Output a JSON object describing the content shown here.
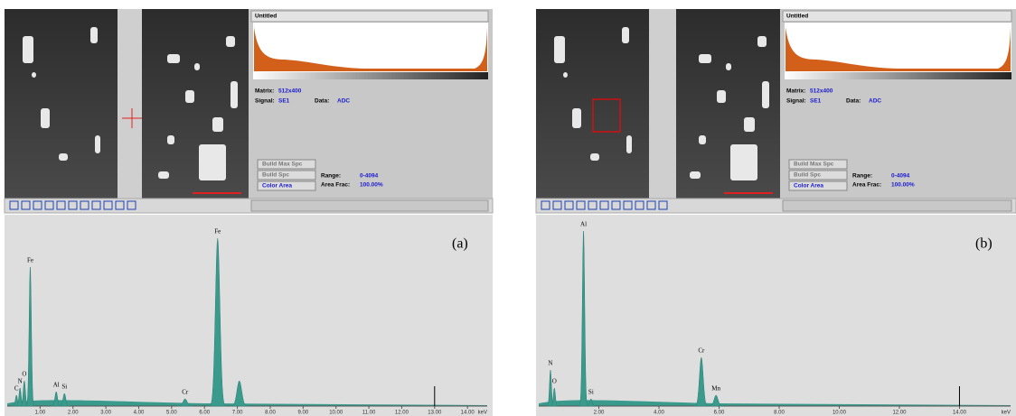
{
  "panels": [
    {
      "tag": "(a)",
      "window_title": "Untitled",
      "matrix_label": "Matrix:",
      "matrix_value": "512x400",
      "signal_label": "Signal:",
      "signal_value": "SE1",
      "data_label": "Data:",
      "data_value": "ADC",
      "buttons": [
        "Build Max Spc",
        "Build Spc",
        "Color Area"
      ],
      "range_label": "Range:",
      "range_value": "0-4094",
      "area_label": "Area Frac:",
      "area_value": "100.00%",
      "spectrum": {
        "xlim": [
          0,
          14.6
        ],
        "ylim": [
          0,
          100
        ],
        "x_unit": "keV",
        "marker": 13,
        "xticks": [
          {
            "value": 1,
            "label": "1.00"
          },
          {
            "value": 2,
            "label": "2.00"
          },
          {
            "value": 3,
            "label": "3.00"
          },
          {
            "value": 4,
            "label": "4.00"
          },
          {
            "value": 5,
            "label": "5.00"
          },
          {
            "value": 6,
            "label": "6.00"
          },
          {
            "value": 7,
            "label": "7.00"
          },
          {
            "value": 8,
            "label": "8.00"
          },
          {
            "value": 9,
            "label": "9.00"
          },
          {
            "value": 10,
            "label": "10.00"
          },
          {
            "value": 11,
            "label": "11.00"
          },
          {
            "value": 12,
            "label": "12.00"
          },
          {
            "value": 13,
            "label": "13.00"
          },
          {
            "value": 14,
            "label": "14.00"
          }
        ],
        "peaks": [
          {
            "label": "C",
            "energy": 0.28,
            "height": 6
          },
          {
            "label": "N",
            "energy": 0.39,
            "height": 10
          },
          {
            "label": "O",
            "energy": 0.52,
            "height": 14
          },
          {
            "label": "Fe",
            "energy": 0.7,
            "height": 77
          },
          {
            "label": "Al",
            "energy": 1.49,
            "height": 8
          },
          {
            "label": "Si",
            "energy": 1.74,
            "height": 7
          },
          {
            "label": "Cr",
            "energy": 5.41,
            "height": 4
          },
          {
            "label": "Fe",
            "energy": 6.4,
            "height": 93
          },
          {
            "label": null,
            "energy": 7.06,
            "height": 14
          }
        ]
      }
    },
    {
      "tag": "(b)",
      "window_title": "Untitled",
      "matrix_label": "Matrix:",
      "matrix_value": "512x400",
      "signal_label": "Signal:",
      "signal_value": "SE1",
      "data_label": "Data:",
      "data_value": "ADC",
      "buttons": [
        "Build Max Spc",
        "Build Spc",
        "Color Area"
      ],
      "range_label": "Range:",
      "range_value": "0-4094",
      "area_label": "Area Frac:",
      "area_value": "100.00%",
      "spectrum": {
        "xlim": [
          0,
          15.7
        ],
        "ylim": [
          0,
          100
        ],
        "x_unit": "keV",
        "marker": 14,
        "xticks": [
          {
            "value": 2,
            "label": "2.00"
          },
          {
            "value": 4,
            "label": "4.00"
          },
          {
            "value": 6,
            "label": "6.00"
          },
          {
            "value": 8,
            "label": "8.00"
          },
          {
            "value": 10,
            "label": "10.00"
          },
          {
            "value": 12,
            "label": "12.00"
          },
          {
            "value": 14,
            "label": "14.00"
          }
        ],
        "peaks": [
          {
            "label": "N",
            "energy": 0.39,
            "height": 20
          },
          {
            "label": "O",
            "energy": 0.52,
            "height": 10
          },
          {
            "label": "Al",
            "energy": 1.49,
            "height": 97
          },
          {
            "label": "Si",
            "energy": 1.74,
            "height": 4
          },
          {
            "label": "Cr",
            "energy": 5.41,
            "height": 27
          },
          {
            "label": "Mn",
            "energy": 5.9,
            "height": 6
          }
        ]
      }
    }
  ]
}
